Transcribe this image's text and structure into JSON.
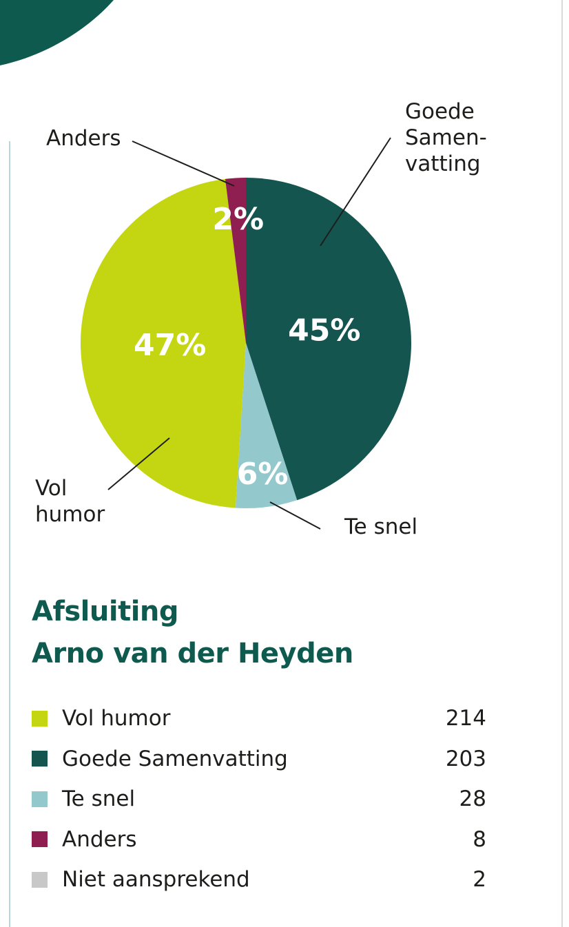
{
  "colors": {
    "accent": "#0f5a4f",
    "vol_humor": "#c4d612",
    "goede_samenvatting": "#155550",
    "te_snel": "#93c8cc",
    "anders": "#8e1f50",
    "niet_aansprekend": "#c8c8c8"
  },
  "chart_data": {
    "type": "pie",
    "title": "",
    "slices": [
      {
        "label": "Goede Samenvatting",
        "value": 45,
        "percent_label": "45%",
        "color": "#155550"
      },
      {
        "label": "Te snel",
        "value": 6,
        "percent_label": "6%",
        "color": "#93c8cc"
      },
      {
        "label": "Vol humor",
        "value": 47,
        "percent_label": "47%",
        "color": "#c4d612"
      },
      {
        "label": "Anders",
        "value": 2,
        "percent_label": "2%",
        "color": "#8e1f50"
      }
    ],
    "callouts": {
      "goede_samenvatting": [
        "Goede",
        "Samen-",
        "vatting"
      ],
      "anders": "Anders",
      "vol_humor": [
        "Vol",
        "humor"
      ],
      "te_snel": "Te snel"
    }
  },
  "section": {
    "title_line1": "Afsluiting",
    "title_line2": "Arno van der Heyden"
  },
  "legend": [
    {
      "label": "Vol humor",
      "count": "214",
      "color": "#c4d612"
    },
    {
      "label": "Goede Samenvatting",
      "count": "203",
      "color": "#155550"
    },
    {
      "label": "Te snel",
      "count": "28",
      "color": "#93c8cc"
    },
    {
      "label": "Anders",
      "count": "8",
      "color": "#8e1f50"
    },
    {
      "label": "Niet aansprekend",
      "count": "2",
      "color": "#c8c8c8"
    }
  ]
}
